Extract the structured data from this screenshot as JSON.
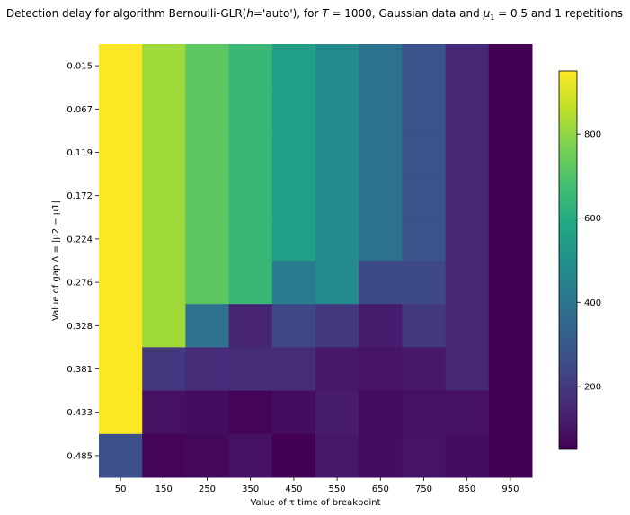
{
  "chart_data": {
    "type": "heatmap",
    "title": "Detection delay for algorithm Bernoulli-GLR(h='auto'), for T = 1000, Gaussian data and μ1 = 0.5 and 1 repetitions",
    "title_parts": {
      "prefix": "Detection delay for algorithm Bernoulli-GLR(",
      "h_symbol": "h",
      "h_value": "='auto'), for ",
      "T_symbol": "T",
      "T_value": " = 1000, Gaussian data and ",
      "mu_symbol": "μ",
      "mu_sub": "1",
      "suffix": " = 0.5 and 1 repetitions"
    },
    "xlabel": "Value of τ time of breakpoint",
    "ylabel": "Value of gap Δ = |μ2 − μ1|",
    "x_categories": [
      "50",
      "150",
      "250",
      "350",
      "450",
      "550",
      "650",
      "750",
      "850",
      "950"
    ],
    "y_categories": [
      "0.015",
      "0.067",
      "0.119",
      "0.172",
      "0.224",
      "0.276",
      "0.328",
      "0.381",
      "0.433",
      "0.485"
    ],
    "values": [
      [
        950,
        820,
        720,
        650,
        560,
        480,
        390,
        280,
        150,
        50
      ],
      [
        950,
        820,
        720,
        650,
        560,
        480,
        390,
        280,
        150,
        50
      ],
      [
        950,
        820,
        720,
        650,
        560,
        480,
        390,
        280,
        150,
        50
      ],
      [
        950,
        820,
        720,
        650,
        560,
        480,
        390,
        280,
        150,
        50
      ],
      [
        950,
        820,
        720,
        650,
        560,
        480,
        390,
        280,
        150,
        50
      ],
      [
        950,
        820,
        720,
        650,
        420,
        480,
        250,
        250,
        150,
        50
      ],
      [
        950,
        820,
        380,
        140,
        240,
        200,
        120,
        200,
        150,
        50
      ],
      [
        950,
        200,
        160,
        160,
        160,
        110,
        100,
        110,
        150,
        50
      ],
      [
        950,
        90,
        80,
        60,
        80,
        120,
        80,
        90,
        90,
        50
      ],
      [
        270,
        60,
        70,
        90,
        50,
        110,
        80,
        100,
        80,
        50
      ]
    ],
    "colorbar": {
      "range": [
        50,
        950
      ],
      "ticks": [
        200,
        400,
        600,
        800
      ],
      "colormap": "viridis"
    }
  }
}
